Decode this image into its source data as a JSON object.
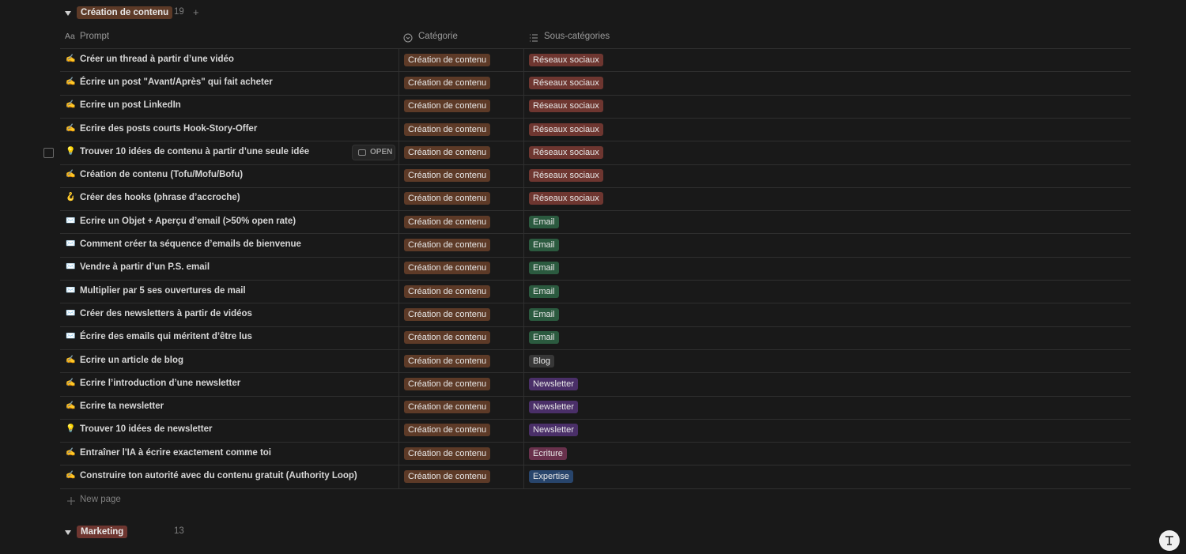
{
  "columns": [
    {
      "icon": "Aa",
      "label": "Prompt"
    },
    {
      "label": "Catégorie"
    },
    {
      "label": "Sous-catégories"
    }
  ],
  "groups": [
    {
      "title": "Création de contenu",
      "color": "brown",
      "count": 19,
      "add": "+",
      "new_page": "New page",
      "rows": [
        {
          "icon": "✍️",
          "prompt": "Créer un thread à partir d’une vidéo",
          "category": "Création de contenu",
          "subcategory": {
            "label": "Réseaux sociaux",
            "color": "red"
          }
        },
        {
          "icon": "✍️",
          "prompt": "Écrire un post \"Avant/Après\" qui fait acheter",
          "category": "Création de contenu",
          "subcategory": {
            "label": "Réseaux sociaux",
            "color": "red"
          }
        },
        {
          "icon": "✍️",
          "prompt": "Ecrire un post LinkedIn",
          "category": "Création de contenu",
          "subcategory": {
            "label": "Réseaux sociaux",
            "color": "red"
          }
        },
        {
          "icon": "✍️",
          "prompt": "Ecrire des posts courts Hook-Story-Offer",
          "category": "Création de contenu",
          "subcategory": {
            "label": "Réseaux sociaux",
            "color": "red"
          }
        },
        {
          "icon": "💡",
          "prompt": "Trouver 10 idées de contenu à partir d’une seule idée",
          "category": "Création de contenu",
          "subcategory": {
            "label": "Réseaux sociaux",
            "color": "red"
          },
          "open_button": "OPEN"
        },
        {
          "icon": "✍️",
          "prompt": "Création de contenu (Tofu/Mofu/Bofu)",
          "category": "Création de contenu",
          "subcategory": {
            "label": "Réseaux sociaux",
            "color": "red"
          }
        },
        {
          "icon": "🪝",
          "prompt": "Créer des hooks (phrase d’accroche)",
          "category": "Création de contenu",
          "subcategory": {
            "label": "Réseaux sociaux",
            "color": "red"
          }
        },
        {
          "icon": "✉️",
          "prompt": "Ecrire un Objet + Aperçu d’email (>50% open rate)",
          "category": "Création de contenu",
          "subcategory": {
            "label": "Email",
            "color": "green"
          }
        },
        {
          "icon": "✉️",
          "prompt": "Comment créer ta séquence d’emails de bienvenue",
          "category": "Création de contenu",
          "subcategory": {
            "label": "Email",
            "color": "green"
          }
        },
        {
          "icon": "✉️",
          "prompt": "Vendre à partir d’un P.S. email",
          "category": "Création de contenu",
          "subcategory": {
            "label": "Email",
            "color": "green"
          }
        },
        {
          "icon": "✉️",
          "prompt": "Multiplier par 5 ses ouvertures de mail",
          "category": "Création de contenu",
          "subcategory": {
            "label": "Email",
            "color": "green"
          }
        },
        {
          "icon": "✉️",
          "prompt": "Créer des newsletters à partir de vidéos",
          "category": "Création de contenu",
          "subcategory": {
            "label": "Email",
            "color": "green"
          }
        },
        {
          "icon": "✉️",
          "prompt": "Écrire des emails qui méritent d’être lus",
          "category": "Création de contenu",
          "subcategory": {
            "label": "Email",
            "color": "green"
          }
        },
        {
          "icon": "✍️",
          "prompt": "Ecrire un article de blog",
          "category": "Création de contenu",
          "subcategory": {
            "label": "Blog",
            "color": "gray"
          }
        },
        {
          "icon": "✍️",
          "prompt": "Ecrire l’introduction d’une newsletter",
          "category": "Création de contenu",
          "subcategory": {
            "label": "Newsletter",
            "color": "purple"
          }
        },
        {
          "icon": "✍️",
          "prompt": "Ecrire ta newsletter",
          "category": "Création de contenu",
          "subcategory": {
            "label": "Newsletter",
            "color": "purple"
          }
        },
        {
          "icon": "💡",
          "prompt": "Trouver 10 idées de newsletter",
          "category": "Création de contenu",
          "subcategory": {
            "label": "Newsletter",
            "color": "purple"
          }
        },
        {
          "icon": "✍️",
          "prompt": "Entraîner l'IA à écrire exactement comme toi",
          "category": "Création de contenu",
          "subcategory": {
            "label": "Ecriture",
            "color": "pink"
          }
        },
        {
          "icon": "✍️",
          "prompt": "Construire ton autorité avec du contenu gratuit (Authority Loop)",
          "category": "Création de contenu",
          "subcategory": {
            "label": "Expertise",
            "color": "blue"
          }
        }
      ]
    },
    {
      "title": "Marketing",
      "color": "red",
      "count": 13
    }
  ]
}
